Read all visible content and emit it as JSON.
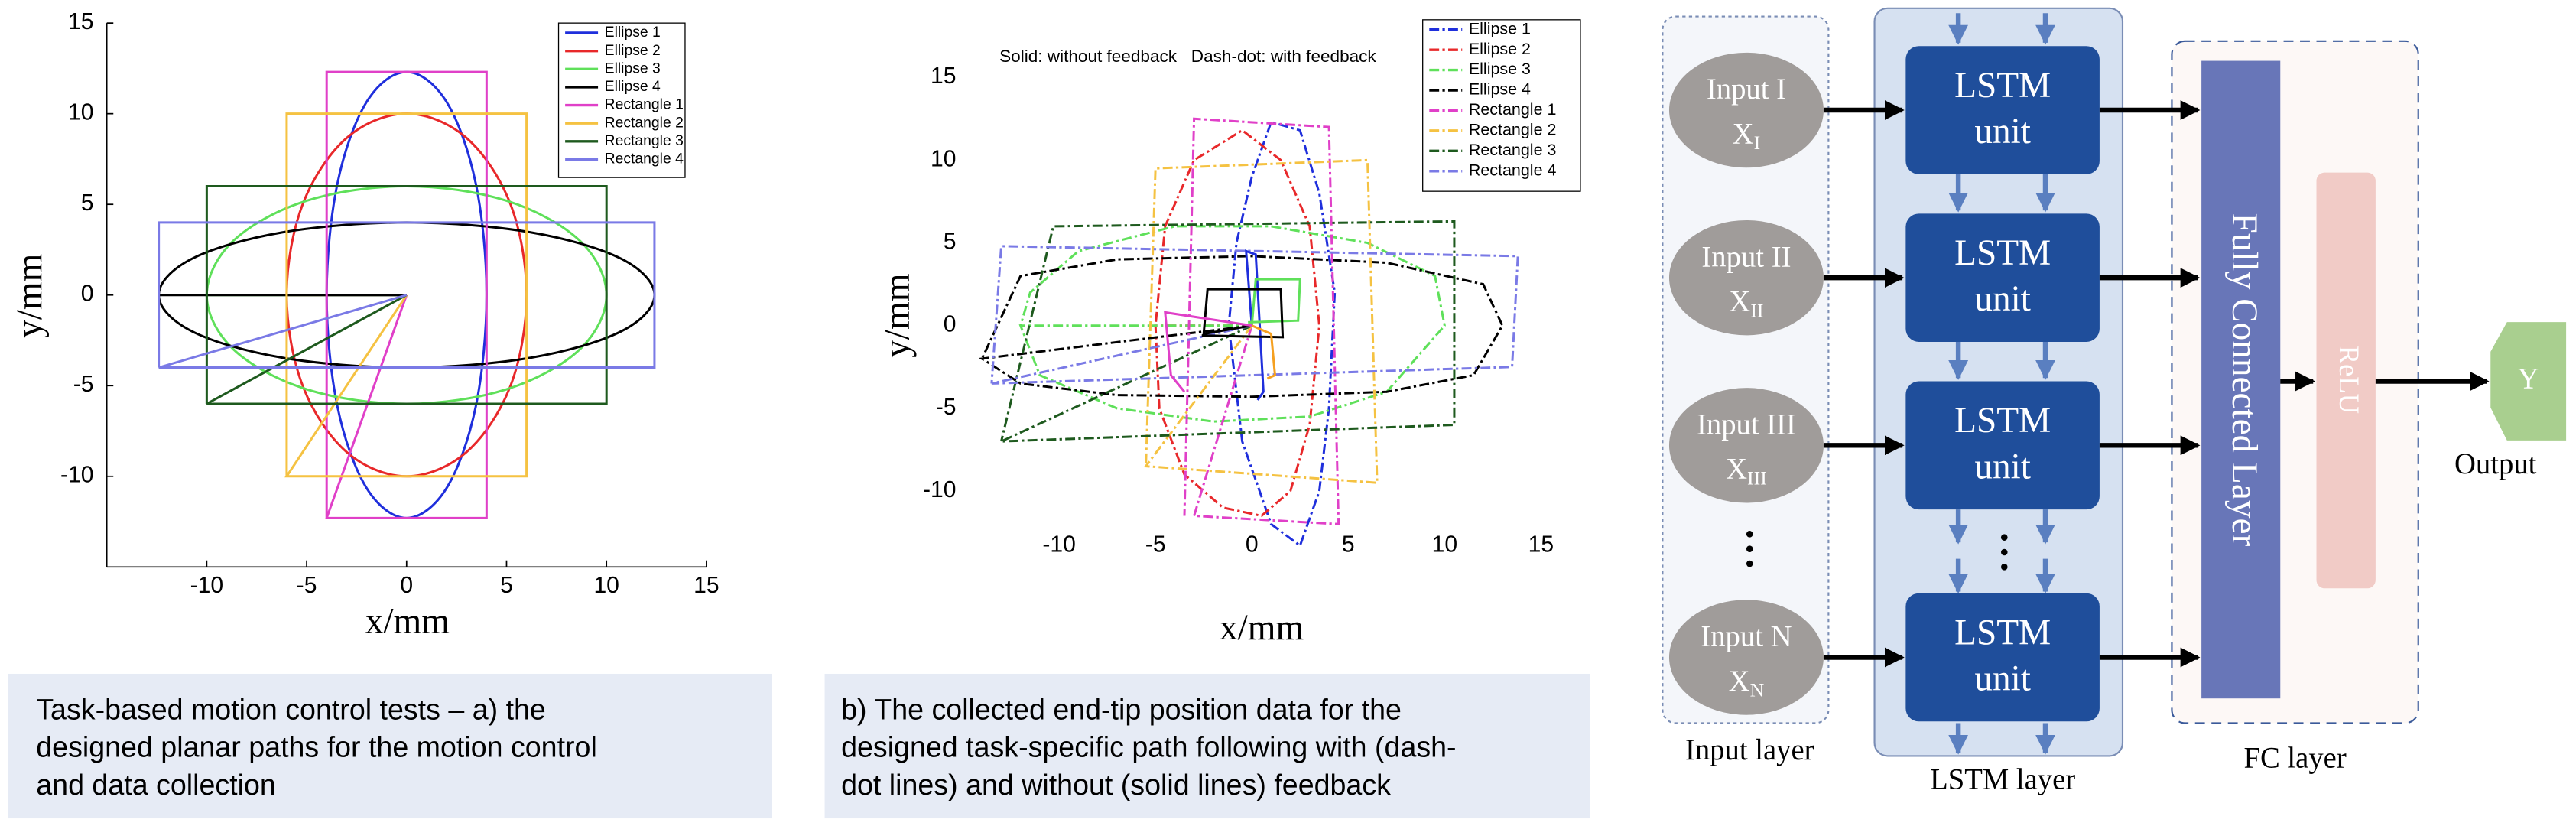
{
  "chart_data": [
    {
      "type": "line",
      "xlabel": "x/mm",
      "ylabel": "y/mm",
      "xlim": [
        -15,
        15
      ],
      "ylim": [
        -15,
        15
      ],
      "xticks": [
        -10,
        -5,
        0,
        5,
        10,
        15
      ],
      "yticks": [
        -10,
        -5,
        0,
        5,
        10,
        15
      ],
      "axis_lines": true,
      "legend": "northeast",
      "series": [
        {
          "name": "Ellipse 1",
          "color": "#1f2fdc",
          "dash": "solid",
          "smooth": true,
          "x": [
            0,
            -4,
            -3.46,
            -2,
            0,
            2,
            3.46,
            4,
            3.46,
            2,
            0,
            -2,
            -3.46,
            -4
          ],
          "values": [
            0,
            0,
            -6.15,
            -10.65,
            -12.3,
            -10.65,
            -6.15,
            0,
            6.15,
            10.65,
            12.3,
            10.65,
            6.15,
            0
          ]
        },
        {
          "name": "Ellipse 2",
          "color": "#e8282a",
          "dash": "solid",
          "smooth": true,
          "x": [
            0,
            -6,
            -5.2,
            -3,
            0,
            3,
            5.2,
            6,
            5.2,
            3,
            0,
            -3,
            -5.2,
            -6
          ],
          "values": [
            0,
            0,
            -5,
            -8.66,
            -10,
            -8.66,
            -5,
            0,
            5,
            8.66,
            10,
            8.66,
            5,
            0
          ]
        },
        {
          "name": "Ellipse 3",
          "color": "#5fe05a",
          "dash": "solid",
          "smooth": true,
          "x": [
            0,
            -10,
            -8.66,
            -5,
            0,
            5,
            8.66,
            10,
            8.66,
            5,
            0,
            -5,
            -8.66,
            -10
          ],
          "values": [
            0,
            0,
            -3,
            -5.2,
            -6,
            -5.2,
            -3,
            0,
            3,
            5.2,
            6,
            5.2,
            3,
            0
          ]
        },
        {
          "name": "Ellipse 4",
          "color": "#000000",
          "dash": "solid",
          "smooth": true,
          "x": [
            0,
            -12.4,
            -10.74,
            -6.2,
            0,
            6.2,
            10.74,
            12.4,
            10.74,
            6.2,
            0,
            -6.2,
            -10.74,
            -12.4
          ],
          "values": [
            0,
            0,
            -2,
            -3.46,
            -4,
            -3.46,
            -2,
            0,
            2,
            3.46,
            4,
            3.46,
            2,
            0
          ]
        },
        {
          "name": "Rectangle 1",
          "color": "#e040c8",
          "dash": "solid",
          "smooth": false,
          "x": [
            0,
            -4,
            4,
            4,
            -4,
            -4
          ],
          "values": [
            0,
            -12.3,
            -12.3,
            12.3,
            12.3,
            -12.3
          ]
        },
        {
          "name": "Rectangle 2",
          "color": "#f5c242",
          "dash": "solid",
          "smooth": false,
          "x": [
            0,
            -6,
            6,
            6,
            -6,
            -6
          ],
          "values": [
            0,
            -10,
            -10,
            10,
            10,
            -10
          ]
        },
        {
          "name": "Rectangle 3",
          "color": "#1e5a1e",
          "dash": "solid",
          "smooth": false,
          "x": [
            0,
            -10,
            10,
            10,
            -10,
            -10
          ],
          "values": [
            0,
            -6,
            -6,
            6,
            6,
            -6
          ]
        },
        {
          "name": "Rectangle 4",
          "color": "#7a7ae6",
          "dash": "solid",
          "smooth": false,
          "x": [
            0,
            -12.4,
            12.4,
            12.4,
            -12.4,
            -12.4
          ],
          "values": [
            0,
            -4,
            -4,
            4,
            4,
            -4
          ]
        }
      ]
    },
    {
      "type": "line",
      "xlabel": "x/mm",
      "ylabel": "y/mm",
      "annotation": "Solid: without feedback   Dash-dot: with feedback",
      "xlim": [
        -15,
        15
      ],
      "ylim": [
        -13,
        16
      ],
      "xticks": [
        -10,
        -5,
        0,
        5,
        10,
        15
      ],
      "yticks": [
        -10,
        -5,
        0,
        5,
        10,
        15
      ],
      "axis_lines": false,
      "legend": "northeast",
      "series": [
        {
          "name": "Ellipse 1",
          "color": "#1f2fdc",
          "dash": "dashdot",
          "smooth": false,
          "x": [
            0,
            -1.2,
            -0.5,
            1,
            2.5,
            3.5,
            4,
            4.3,
            3.5,
            2.5,
            1,
            0,
            -0.8,
            -1.2
          ],
          "values": [
            0,
            0,
            -7,
            -12,
            -13.3,
            -10,
            -5,
            2,
            8,
            11.8,
            12.3,
            9,
            5,
            0
          ]
        },
        {
          "name": "Ellipse 2",
          "color": "#e8282a",
          "dash": "dashdot",
          "smooth": false,
          "x": [
            0,
            -5,
            -4.8,
            -3.5,
            -1.5,
            0.5,
            2,
            3,
            3.5,
            3,
            1.5,
            -0.5,
            -3,
            -4.5,
            -5
          ],
          "values": [
            0,
            0,
            -5,
            -9,
            -11,
            -11.5,
            -10,
            -6,
            0,
            6,
            10,
            11.8,
            10,
            6,
            0
          ]
        },
        {
          "name": "Ellipse 3",
          "color": "#5fe05a",
          "dash": "dashdot",
          "smooth": false,
          "x": [
            0,
            -12,
            -11,
            -7,
            -2,
            3,
            7,
            10,
            9.5,
            6,
            1,
            -4,
            -9,
            -11.5,
            -12
          ],
          "values": [
            0,
            0,
            -3,
            -5,
            -5.8,
            -5.5,
            -4,
            0,
            3,
            5,
            6,
            6,
            4.5,
            2,
            0
          ]
        },
        {
          "name": "Ellipse 4",
          "color": "#000000",
          "dash": "dashdot",
          "smooth": false,
          "x": [
            0,
            -14,
            -12,
            -7,
            0,
            7,
            11.5,
            13,
            12,
            7,
            0,
            -7,
            -12,
            -14
          ],
          "values": [
            0,
            -2,
            -3.5,
            -4.2,
            -4.3,
            -4,
            -3,
            0,
            2.5,
            3.8,
            4.2,
            4,
            3,
            -2
          ]
        },
        {
          "name": "Rectangle 1",
          "color": "#e040c8",
          "dash": "dashdot",
          "smooth": false,
          "x": [
            0,
            -3,
            4.5,
            4,
            -3,
            -3.5
          ],
          "values": [
            0,
            -11.5,
            -12,
            12,
            12.5,
            -11.5
          ]
        },
        {
          "name": "Rectangle 2",
          "color": "#f5c242",
          "dash": "dashdot",
          "smooth": false,
          "x": [
            0,
            -5.5,
            6.5,
            6,
            -5,
            -5.5
          ],
          "values": [
            0,
            -8.5,
            -9.5,
            10,
            9.5,
            -8.5
          ]
        },
        {
          "name": "Rectangle 3",
          "color": "#1e5a1e",
          "dash": "dashdot",
          "smooth": false,
          "x": [
            0,
            -13,
            10.5,
            10.5,
            -10.3,
            -13
          ],
          "values": [
            0,
            -7,
            -6,
            6.3,
            6,
            -7
          ]
        },
        {
          "name": "Rectangle 4",
          "color": "#7a7ae6",
          "dash": "dashdot",
          "smooth": false,
          "x": [
            0,
            -13.5,
            13.5,
            13.8,
            -13,
            -13.5
          ],
          "values": [
            0,
            -3.5,
            -2.5,
            4.2,
            4.8,
            -3.5
          ]
        },
        {
          "color": "#1f2fdc",
          "dash": "solid",
          "smooth": false,
          "x": [
            0,
            -0.3,
            0.2,
            0.6,
            0.3
          ],
          "values": [
            0,
            4.5,
            4.3,
            -4,
            -4.5
          ]
        },
        {
          "color": "#5fe05a",
          "dash": "solid",
          "smooth": false,
          "x": [
            0,
            0.2,
            2.5,
            2.4,
            -0.2
          ],
          "values": [
            0,
            2.8,
            2.8,
            0.3,
            0.2
          ]
        },
        {
          "color": "#000000",
          "dash": "solid",
          "smooth": false,
          "x": [
            0,
            -2.5,
            -2.3,
            1.5,
            1.6,
            -2.6
          ],
          "values": [
            0,
            -0.5,
            2.2,
            2.2,
            -0.7,
            -0.6
          ]
        },
        {
          "color": "#e040c8",
          "dash": "solid",
          "smooth": false,
          "x": [
            0,
            -4.5,
            -4.2,
            -3.5
          ],
          "values": [
            0,
            0.8,
            -3,
            -4
          ]
        },
        {
          "color": "#f5a020",
          "dash": "solid",
          "smooth": false,
          "x": [
            0,
            1,
            1.2,
            0.8
          ],
          "values": [
            0,
            -0.5,
            -3,
            -3.2
          ]
        }
      ]
    }
  ],
  "captions": {
    "a": [
      "Task-based motion control tests – a) the",
      "designed planar paths for the motion control",
      "and data collection"
    ],
    "b": [
      "b) The collected end-tip position data for the",
      "designed task-specific path following with (dash-",
      "dot lines) and without (solid lines) feedback"
    ]
  },
  "diagram": {
    "inputs": [
      {
        "name": "Input I",
        "var": "X",
        "sub": "I"
      },
      {
        "name": "Input II",
        "var": "X",
        "sub": "II"
      },
      {
        "name": "Input III",
        "var": "X",
        "sub": "III"
      },
      {
        "name": "Input N",
        "var": "X",
        "sub": "N"
      }
    ],
    "lstm_units": [
      {
        "line1": "LSTM",
        "line2": "unit"
      },
      {
        "line1": "LSTM",
        "line2": "unit"
      },
      {
        "line1": "LSTM",
        "line2": "unit"
      },
      {
        "line1": "LSTM",
        "line2": "unit"
      }
    ],
    "input_layer": "Input layer",
    "lstm_layer": "LSTM layer",
    "fc_layer": "FC layer",
    "fc": "Fully Connected Layer",
    "relu": "ReLU",
    "output": "Y",
    "output_label": "Output"
  }
}
